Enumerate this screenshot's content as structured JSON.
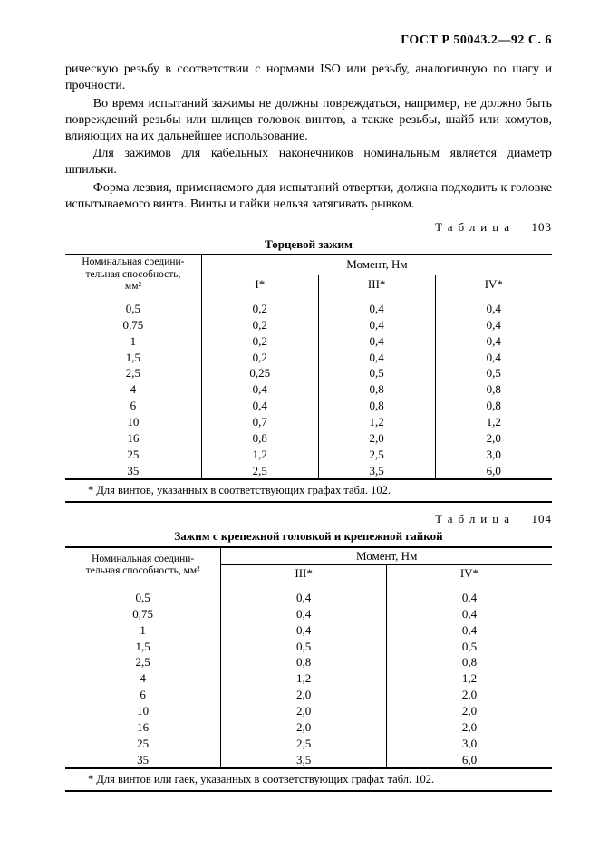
{
  "header": "ГОСТ Р 50043.2—92  С. 6",
  "paragraphs": {
    "p1": "рическую резьбу в соответствии с нормами ISO или резьбу, аналогичную по шагу и прочности.",
    "p2": "Во время испытаний зажимы не должны повреждаться, например, не должно быть повреждений резьбы или шлицев головок винтов, а также резьбы, шайб или хомутов, влияющих на их дальнейшее использование.",
    "p3": "Для зажимов для кабельных наконечников номинальным является диаметр шпильки.",
    "p4": "Форма лезвия, применяемого для испытаний отвертки, должна подходить к головке испытываемого винта. Винты и гайки нельзя затягивать рывком."
  },
  "table103": {
    "label": "Таблица",
    "number": "103",
    "title": "Торцевой зажим",
    "head_nominal_l1": "Номинальная соедини-",
    "head_nominal_l2": "тельная способность,",
    "head_nominal_l3": "мм²",
    "moment": "Момент, Нм",
    "col1": "I*",
    "col2": "III*",
    "col3": "IV*",
    "rows": [
      {
        "n": "0,5",
        "c1": "0,2",
        "c2": "0,4",
        "c3": "0,4"
      },
      {
        "n": "0,75",
        "c1": "0,2",
        "c2": "0,4",
        "c3": "0,4"
      },
      {
        "n": "1",
        "c1": "0,2",
        "c2": "0,4",
        "c3": "0,4"
      },
      {
        "n": "1,5",
        "c1": "0,2",
        "c2": "0,4",
        "c3": "0,4"
      },
      {
        "n": "2,5",
        "c1": "0,25",
        "c2": "0,5",
        "c3": "0,5"
      },
      {
        "n": "4",
        "c1": "0,4",
        "c2": "0,8",
        "c3": "0,8"
      },
      {
        "n": "6",
        "c1": "0,4",
        "c2": "0,8",
        "c3": "0,8"
      },
      {
        "n": "10",
        "c1": "0,7",
        "c2": "1,2",
        "c3": "1,2"
      },
      {
        "n": "16",
        "c1": "0,8",
        "c2": "2,0",
        "c3": "2,0"
      },
      {
        "n": "25",
        "c1": "1,2",
        "c2": "2,5",
        "c3": "3,0"
      },
      {
        "n": "35",
        "c1": "2,5",
        "c2": "3,5",
        "c3": "6,0"
      }
    ],
    "footnote": "* Для винтов, указанных в соответствующих графах табл. 102."
  },
  "table104": {
    "label": "Таблица",
    "number": "104",
    "title": "Зажим с крепежной головкой и крепежной гайкой",
    "head_nominal_l1": "Номинальная соедини-",
    "head_nominal_l2": "тельная способность, мм²",
    "moment": "Момент, Нм",
    "col1": "III*",
    "col2": "IV*",
    "rows": [
      {
        "n": "0,5",
        "c1": "0,4",
        "c2": "0,4"
      },
      {
        "n": "0,75",
        "c1": "0,4",
        "c2": "0,4"
      },
      {
        "n": "1",
        "c1": "0,4",
        "c2": "0,4"
      },
      {
        "n": "1,5",
        "c1": "0,5",
        "c2": "0,5"
      },
      {
        "n": "2,5",
        "c1": "0,8",
        "c2": "0,8"
      },
      {
        "n": "4",
        "c1": "1,2",
        "c2": "1,2"
      },
      {
        "n": "6",
        "c1": "2,0",
        "c2": "2,0"
      },
      {
        "n": "10",
        "c1": "2,0",
        "c2": "2,0"
      },
      {
        "n": "16",
        "c1": "2,0",
        "c2": "2,0"
      },
      {
        "n": "25",
        "c1": "2,5",
        "c2": "3,0"
      },
      {
        "n": "35",
        "c1": "3,5",
        "c2": "6,0"
      }
    ],
    "footnote": "* Для винтов или гаек, указанных в соответствующих графах табл. 102."
  }
}
